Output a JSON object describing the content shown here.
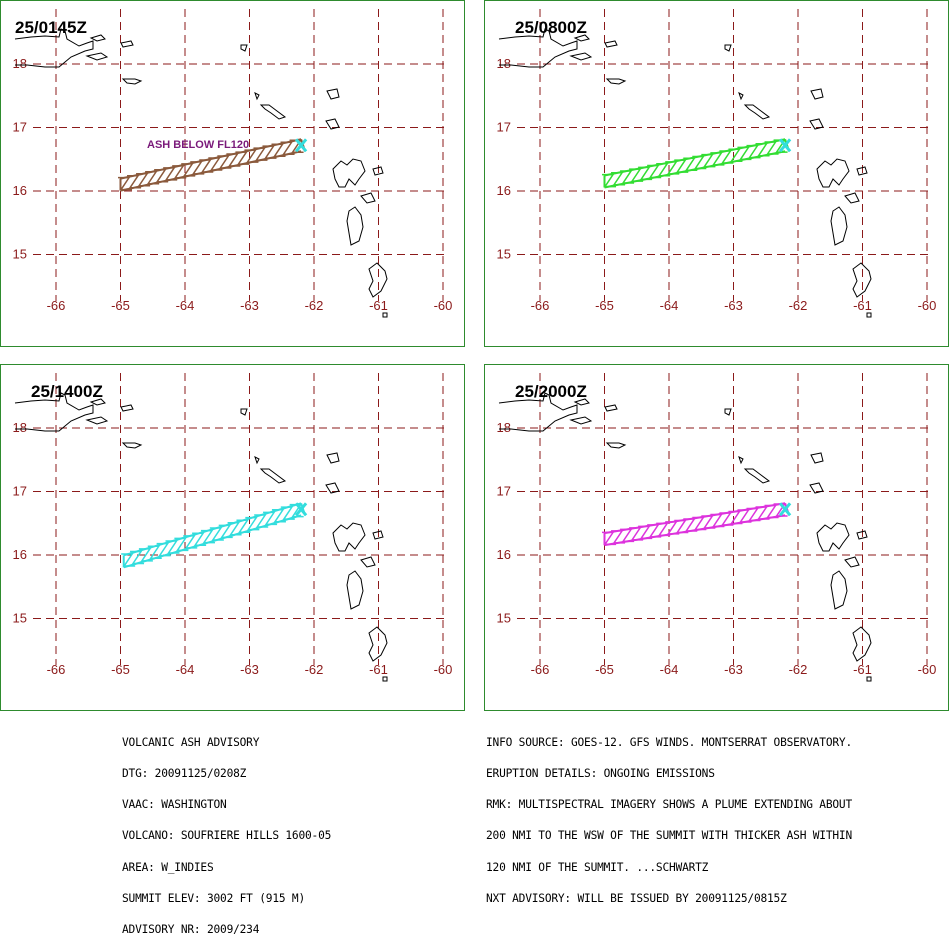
{
  "panels": [
    {
      "time": "25/0145Z",
      "ash_color": "#8b5a3c",
      "ash_lon_start": -65.0,
      "ash_lat_start": 16.1,
      "ash_lon_end": -62.2,
      "ash_lat_end": 16.72,
      "label": "ASH BELOW FL120"
    },
    {
      "time": "25/0800Z",
      "ash_color": "#33dd33",
      "ash_lon_start": -65.0,
      "ash_lat_start": 16.15,
      "ash_lon_end": -62.2,
      "ash_lat_end": 16.72,
      "label": ""
    },
    {
      "time": "25/1400Z",
      "ash_color": "#33dddd",
      "ash_lon_start": -64.95,
      "ash_lat_start": 15.9,
      "ash_lon_end": -62.2,
      "ash_lat_end": 16.72,
      "label": ""
    },
    {
      "time": "25/2000Z",
      "ash_color": "#dd33dd",
      "ash_lon_start": -65.0,
      "ash_lat_start": 16.25,
      "ash_lon_end": -62.2,
      "ash_lat_end": 16.72,
      "label": ""
    }
  ],
  "axes": {
    "lon_labels": [
      "-66",
      "-65",
      "-64",
      "-63",
      "-62",
      "-61",
      "-60"
    ],
    "lat_labels": [
      "18",
      "17",
      "16",
      "15"
    ]
  },
  "summit_marker_color": "#33dddd",
  "advisory": {
    "left": [
      "VOLCANIC ASH ADVISORY",
      "DTG: 20091125/0208Z",
      "VAAC: WASHINGTON",
      "VOLCANO: SOUFRIERE HILLS 1600-05",
      "AREA: W_INDIES",
      "SUMMIT ELEV: 3002 FT (915 M)",
      "ADVISORY NR: 2009/234"
    ],
    "right": [
      "INFO SOURCE: GOES-12. GFS WINDS. MONTSERRAT OBSERVATORY.",
      "ERUPTION DETAILS: ONGOING EMISSIONS",
      "RMK: MULTISPECTRAL IMAGERY SHOWS A PLUME EXTENDING ABOUT",
      "200 NMI TO THE WSW OF THE SUMMIT WITH THICKER ASH WITHIN",
      "120 NMI OF THE SUMMIT. ...SCHWARTZ",
      "NXT ADVISORY: WILL BE ISSUED BY 20091125/0815Z"
    ]
  }
}
